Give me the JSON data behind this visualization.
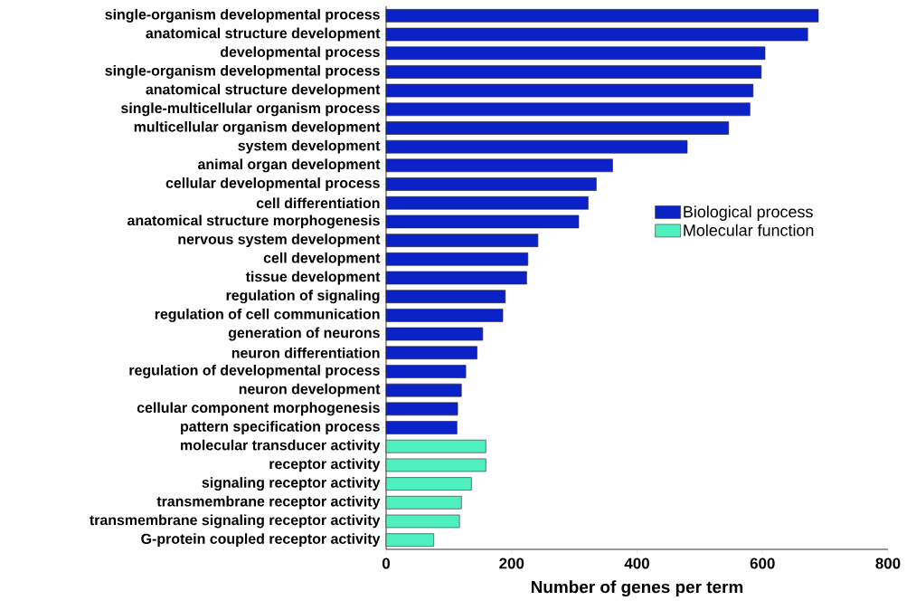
{
  "chart_data": {
    "type": "bar",
    "orientation": "horizontal",
    "xlabel": "Number of genes per term",
    "categories": [
      "single-organism developmental process",
      "anatomical structure development",
      "developmental process",
      "single-organism developmental process",
      "anatomical structure development",
      "single-multicellular organism process",
      "multicellular organism development",
      "system development",
      "animal organ development",
      "cellular developmental process",
      "cell differentiation",
      "anatomical structure morphogenesis",
      "nervous system development",
      "cell development",
      "tissue development",
      "regulation of signaling",
      "regulation of cell communication",
      "generation of neurons",
      "neuron differentiation",
      "regulation of developmental process",
      "neuron development",
      "cellular component morphogenesis",
      "pattern specification process",
      "molecular transducer activity",
      "receptor activity",
      "signaling receptor activity",
      "transmembrane receptor activity",
      "transmembrane signaling receptor activity",
      "G-protein coupled receptor activity"
    ],
    "series": [
      {
        "name": "Biological process",
        "color": "#0a22c8",
        "values": [
          689,
          672,
          604,
          598,
          585,
          580,
          546,
          480,
          361,
          335,
          322,
          307,
          242,
          226,
          224,
          190,
          186,
          154,
          145,
          127,
          120,
          114,
          113,
          null,
          null,
          null,
          null,
          null,
          null
        ]
      },
      {
        "name": "Molecular function",
        "color": "#4ef0c0",
        "values": [
          null,
          null,
          null,
          null,
          null,
          null,
          null,
          null,
          null,
          null,
          null,
          null,
          null,
          null,
          null,
          null,
          null,
          null,
          null,
          null,
          null,
          null,
          null,
          159,
          159,
          136,
          120,
          117,
          76
        ]
      }
    ],
    "xlim": [
      0,
      800
    ],
    "xticks": [
      0,
      200,
      400,
      600,
      800
    ],
    "legend": "right",
    "grid": false
  }
}
